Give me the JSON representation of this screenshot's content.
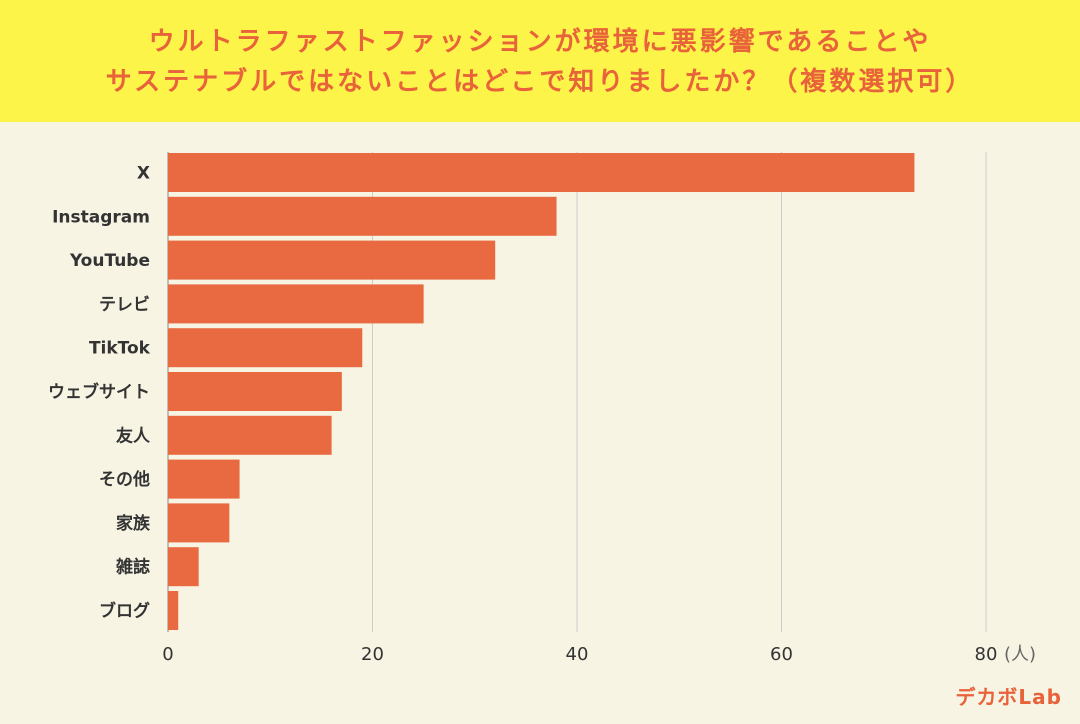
{
  "title": {
    "line1": "ウルトラファストファッションが環境に悪影響であることや",
    "line2": "サステナブルではないことはどこで知りましたか？（複数選択可）"
  },
  "logo": "デカボLab",
  "colors": {
    "bar": "#e96a40",
    "header_bg": "#fdf44a",
    "title": "#e8623a",
    "background": "#f7f4e4",
    "grid": "#cccccc",
    "text": "#333333"
  },
  "chart_data": {
    "type": "bar",
    "orientation": "horizontal",
    "categories": [
      "X",
      "Instagram",
      "YouTube",
      "テレビ",
      "TikTok",
      "ウェブサイト",
      "友人",
      "その他",
      "家族",
      "雑誌",
      "ブログ"
    ],
    "values": [
      73,
      38,
      32,
      25,
      19,
      17,
      16,
      7,
      6,
      3,
      1
    ],
    "xlim": [
      0,
      80
    ],
    "xticks": [
      0,
      20,
      40,
      60,
      80
    ],
    "tick_labels": [
      "0",
      "20",
      "40",
      "60",
      "80"
    ],
    "unit_label": "(人)",
    "grid": true
  }
}
